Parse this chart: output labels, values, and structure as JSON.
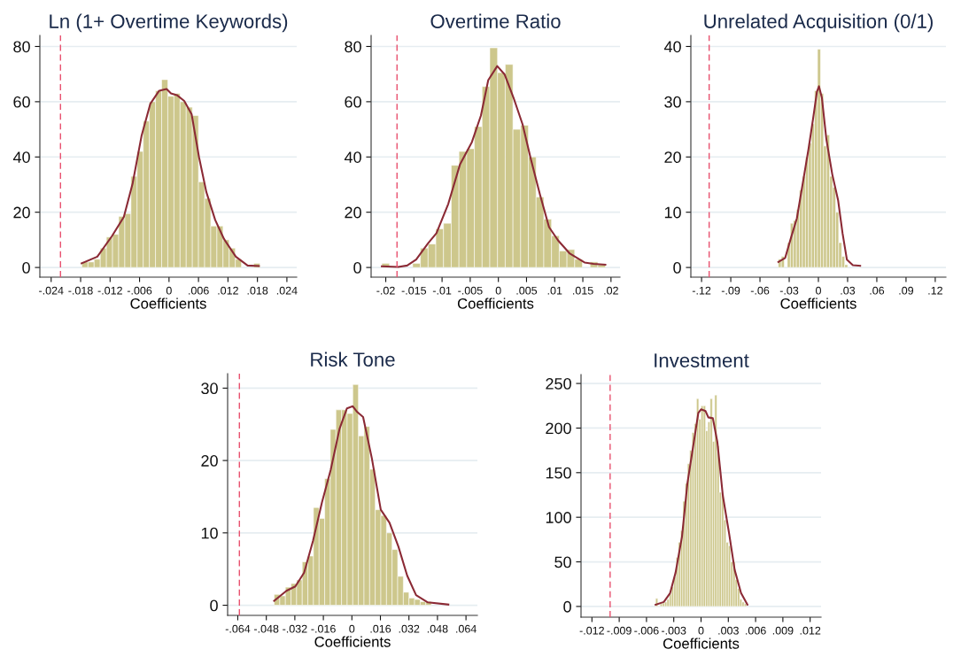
{
  "chart_data": [
    {
      "type": "histogram",
      "title": "Ln (1+ Overtime Keywords)",
      "xlabel": "Coefficients",
      "color": "#cdc78c",
      "grid": "y",
      "bins": [
        -0.01775,
        -0.0165,
        -0.01525,
        -0.014,
        -0.01275,
        -0.0115,
        -0.01025,
        -0.009,
        -0.00775,
        -0.0065,
        -0.00525,
        -0.004,
        -0.00275,
        -0.0015,
        -0.00025,
        0.001,
        0.00225,
        0.0035,
        0.00475,
        0.006,
        0.00725,
        0.0085,
        0.00975,
        0.011,
        0.01225,
        0.0135,
        0.01475,
        0.016,
        0.01725,
        0.0185
      ],
      "values": [
        2,
        2,
        3,
        7,
        11,
        12,
        18.5,
        19.5,
        33,
        42,
        53,
        60,
        64,
        68,
        62,
        63,
        60,
        58,
        55,
        31,
        25,
        15,
        15,
        10,
        7,
        3,
        0,
        0,
        1.5
      ],
      "series": [
        {
          "type": "line",
          "color": "#8b2a35",
          "x": [
            -0.0178,
            -0.0146,
            -0.0116,
            -0.0092,
            -0.0074,
            -0.0056,
            -0.0038,
            -0.002,
            -0.0005,
            0.0004,
            0.0016,
            0.0031,
            0.0046,
            0.0061,
            0.0076,
            0.0094,
            0.0112,
            0.0136,
            0.016,
            0.0183
          ],
          "values": [
            1.5,
            3.9,
            11.4,
            18.3,
            30.5,
            47.6,
            59.3,
            64,
            64.6,
            63,
            62.4,
            60.3,
            55.5,
            40,
            27.3,
            17.2,
            10.3,
            3.9,
            0.7,
            0.5
          ]
        }
      ],
      "ref_lines": [
        {
          "axis": "x",
          "value": -0.0221,
          "color": "#e8506e",
          "line_style": "dashed"
        }
      ],
      "xlim": [
        -0.0263,
        0.026
      ],
      "ylim": [
        -3.5,
        84
      ],
      "xticks": [
        {
          "value": -0.024,
          "label": "-.024"
        },
        {
          "value": -0.018,
          "label": "-.018"
        },
        {
          "value": -0.012,
          "label": "-.012"
        },
        {
          "value": -0.006,
          "label": "-.006"
        },
        0,
        {
          "value": 0.006,
          "label": ".006"
        },
        {
          "value": 0.012,
          "label": ".012"
        },
        {
          "value": 0.018,
          "label": ".018"
        },
        {
          "value": 0.024,
          "label": ".024"
        }
      ],
      "yticks": [
        0,
        20,
        40,
        60,
        80
      ]
    },
    {
      "type": "histogram",
      "title": "Overtime Ratio",
      "xlabel": "Coefficients",
      "color": "#cdc78c",
      "grid": "y",
      "bins": [
        -0.0207,
        -0.01933,
        -0.01796,
        -0.01659,
        -0.01522,
        -0.01385,
        -0.01248,
        -0.01111,
        -0.00974,
        -0.00837,
        -0.007,
        -0.00563,
        -0.00426,
        -0.00289,
        -0.00152,
        -0.00015,
        0.00122,
        0.00259,
        0.00396,
        0.00533,
        0.0067,
        0.00807,
        0.00944,
        0.01081,
        0.01218,
        0.01355,
        0.01492,
        0.01629,
        0.01766,
        0.01903
      ],
      "values": [
        1.5,
        0,
        0,
        0,
        1.5,
        7,
        8.5,
        14,
        16,
        37,
        42,
        43,
        51,
        65.5,
        79.5,
        70.5,
        73.5,
        50,
        51.5,
        40,
        25.5,
        17.5,
        11.5,
        6,
        6.5,
        3,
        0,
        2,
        1
      ],
      "series": [
        {
          "type": "line",
          "color": "#8b2a35",
          "x": [
            -0.0207,
            -0.0178,
            -0.0162,
            -0.0146,
            -0.0125,
            -0.011,
            -0.0089,
            -0.0068,
            -0.0047,
            -0.0031,
            -0.0018,
            -0.0002,
            0.0011,
            0.0027,
            0.0043,
            0.0058,
            0.0074,
            0.009,
            0.0106,
            0.0127,
            0.0153,
            0.0169,
            0.019
          ],
          "values": [
            0.4,
            0.2,
            0.7,
            2.9,
            8.7,
            12.4,
            23,
            37.4,
            45.4,
            55,
            67.8,
            72.9,
            69.9,
            61.4,
            51.8,
            39,
            26.3,
            14.6,
            9.8,
            5,
            1.8,
            1.3,
            1
          ]
        }
      ],
      "ref_lines": [
        {
          "axis": "x",
          "value": -0.018,
          "color": "#e8506e",
          "line_style": "dashed"
        }
      ],
      "xlim": [
        -0.0226,
        0.0216
      ],
      "ylim": [
        -3.5,
        84
      ],
      "xticks": [
        {
          "value": -0.02,
          "label": "-.02"
        },
        {
          "value": -0.015,
          "label": "-.015"
        },
        {
          "value": -0.01,
          "label": "-.01"
        },
        {
          "value": -0.005,
          "label": "-.005"
        },
        0,
        {
          "value": 0.005,
          "label": ".005"
        },
        {
          "value": 0.01,
          "label": ".01"
        },
        {
          "value": 0.015,
          "label": ".015"
        },
        {
          "value": 0.02,
          "label": ".02"
        }
      ],
      "yticks": [
        0,
        20,
        40,
        60,
        80
      ]
    },
    {
      "type": "histogram",
      "title": "Unrelated Acquisition (0/1)",
      "xlabel": "Coefficients",
      "color": "#cdc78c",
      "grid": "y",
      "bins": [
        -0.0412,
        -0.0381,
        -0.035,
        -0.0319,
        -0.0288,
        -0.0257,
        -0.0226,
        -0.0195,
        -0.0164,
        -0.0133,
        -0.0102,
        -0.0071,
        -0.004,
        -0.0009,
        0.0022,
        0.0053,
        0.0084,
        0.0115,
        0.0146,
        0.0177,
        0.0208,
        0.0239,
        0.027,
        0.0301
      ],
      "values": [
        1.5,
        2,
        0,
        4.5,
        8,
        8.5,
        10.5,
        14,
        16.5,
        20,
        22.5,
        26,
        32,
        39.5,
        31.5,
        22,
        24,
        16.5,
        14.5,
        10,
        4.5,
        2,
        0.5
      ],
      "series": [
        {
          "type": "line",
          "color": "#8b2a35",
          "x": [
            -0.0411,
            -0.0342,
            -0.0281,
            -0.0221,
            -0.016,
            -0.01,
            -0.0054,
            -0.0015,
            0.0006,
            0.0036,
            0.0082,
            0.0142,
            0.0203,
            0.0248,
            0.0293,
            0.0354,
            0.0429
          ],
          "values": [
            1,
            1.7,
            5.4,
            8.9,
            15.3,
            21.6,
            27,
            31.8,
            32.8,
            30.7,
            23.2,
            16.9,
            12.1,
            6.2,
            1.4,
            0.4,
            0.3
          ]
        }
      ],
      "ref_lines": [
        {
          "axis": "x",
          "value": -0.1122,
          "color": "#e8506e",
          "line_style": "dashed"
        }
      ],
      "xlim": [
        -0.131,
        0.131
      ],
      "ylim": [
        -1.75,
        42
      ],
      "xticks": [
        {
          "value": -0.12,
          "label": "-.12"
        },
        {
          "value": -0.09,
          "label": "-.09"
        },
        {
          "value": -0.06,
          "label": "-.06"
        },
        {
          "value": -0.03,
          "label": "-.03"
        },
        0,
        {
          "value": 0.03,
          "label": ".03"
        },
        {
          "value": 0.06,
          "label": ".06"
        },
        {
          "value": 0.09,
          "label": ".09"
        },
        {
          "value": 0.12,
          "label": ".12"
        }
      ],
      "yticks": [
        0,
        10,
        20,
        30,
        40
      ]
    },
    {
      "type": "histogram",
      "title": "Risk Tone",
      "xlabel": "Coefficients",
      "color": "#cdc78c",
      "grid": "y",
      "bins": [
        -0.0436,
        -0.04045,
        -0.0373,
        -0.03415,
        -0.031,
        -0.02785,
        -0.0247,
        -0.02155,
        -0.0184,
        -0.01525,
        -0.0121,
        -0.00895,
        -0.0058,
        -0.00265,
        0.0005,
        0.00365,
        0.0068,
        0.00995,
        0.0131,
        0.01625,
        0.0194,
        0.02255,
        0.0257,
        0.02885,
        0.032,
        0.03515,
        0.0383,
        0.04145,
        0.0446
      ],
      "values": [
        1.5,
        1.3,
        2.5,
        3,
        3.5,
        6,
        6.8,
        13.5,
        12,
        17.5,
        24.3,
        27,
        27,
        26.5,
        30.5,
        23.4,
        24.7,
        18.8,
        13.2,
        12.4,
        10,
        7.7,
        4,
        1.8,
        1,
        0.8,
        0.5,
        0.5
      ],
      "series": [
        {
          "type": "line",
          "color": "#8b2a35",
          "x": [
            -0.0436,
            -0.0367,
            -0.0317,
            -0.0268,
            -0.0218,
            -0.0168,
            -0.0119,
            -0.0069,
            -0.0028,
            0.0005,
            0.003,
            0.0063,
            0.0112,
            0.0162,
            0.0211,
            0.0261,
            0.031,
            0.036,
            0.0426,
            0.0541
          ],
          "values": [
            0.6,
            2,
            2.6,
            4.5,
            8.9,
            14.2,
            18.7,
            24.4,
            27.2,
            27.5,
            26.7,
            26,
            20.3,
            13.2,
            11.4,
            8.1,
            4.1,
            1.4,
            0.4,
            0.1
          ]
        }
      ],
      "ref_lines": [
        {
          "axis": "x",
          "value": -0.0631,
          "color": "#e8506e",
          "line_style": "dashed"
        }
      ],
      "xlim": [
        -0.0697,
        0.0704
      ],
      "ylim": [
        -1.4,
        32
      ],
      "xticks": [
        {
          "value": -0.064,
          "label": "-.064"
        },
        {
          "value": -0.048,
          "label": "-.048"
        },
        {
          "value": -0.032,
          "label": "-.032"
        },
        {
          "value": -0.016,
          "label": "-.016"
        },
        0,
        {
          "value": 0.016,
          "label": ".016"
        },
        {
          "value": 0.032,
          "label": ".032"
        },
        {
          "value": 0.048,
          "label": ".048"
        },
        {
          "value": 0.064,
          "label": ".064"
        }
      ],
      "yticks": [
        0,
        10,
        20,
        30
      ]
    },
    {
      "type": "histogram",
      "title": "Investment",
      "xlabel": "Coefficients",
      "color": "#cdc78c",
      "grid": "y",
      "bins": [
        -0.005,
        -0.00475,
        -0.0045,
        -0.00425,
        -0.004,
        -0.00375,
        -0.0035,
        -0.00325,
        -0.003,
        -0.00275,
        -0.0025,
        -0.00225,
        -0.002,
        -0.00175,
        -0.0015,
        -0.00125,
        -0.001,
        -0.00075,
        -0.0005,
        -0.00025,
        0,
        0.00025,
        0.0005,
        0.00075,
        0.001,
        0.00125,
        0.0015,
        0.00175,
        0.002,
        0.00225,
        0.0025,
        0.00275,
        0.003,
        0.00325,
        0.0035,
        0.00375,
        0.004,
        0.00425,
        0.0045,
        0.00475,
        0.005
      ],
      "values": [
        9,
        0,
        3,
        4,
        5,
        8,
        14,
        22,
        33,
        55,
        72,
        85,
        118,
        138,
        160,
        175,
        195,
        205,
        233,
        210,
        225,
        225,
        197,
        207,
        233,
        185,
        237,
        180,
        128,
        125,
        97,
        72,
        68,
        50,
        50,
        30,
        20,
        8,
        5,
        3
      ],
      "series": [
        {
          "type": "line",
          "color": "#8b2a35",
          "x": [
            -0.005,
            -0.0041,
            -0.0034,
            -0.0028,
            -0.0021,
            -0.0015,
            -0.0008,
            -0.0003,
            0,
            0.0005,
            0.0008,
            0.0013,
            0.0018,
            0.0024,
            0.0031,
            0.0037,
            0.0044,
            0.0051
          ],
          "values": [
            2,
            5,
            15,
            38,
            78,
            138,
            184,
            217,
            221,
            219,
            212,
            211,
            184,
            124,
            81,
            41,
            15,
            2
          ]
        }
      ],
      "ref_lines": [
        {
          "axis": "x",
          "value": -0.01,
          "color": "#e8506e",
          "line_style": "dashed"
        }
      ],
      "xlim": [
        -0.0132,
        0.0132
      ],
      "ylim": [
        -12,
        260
      ],
      "xticks": [
        {
          "value": -0.012,
          "label": "-.012"
        },
        {
          "value": -0.009,
          "label": "-.009"
        },
        {
          "value": -0.006,
          "label": "-.006"
        },
        {
          "value": -0.003,
          "label": "-.003"
        },
        0,
        {
          "value": 0.003,
          "label": ".003"
        },
        {
          "value": 0.006,
          "label": ".006"
        },
        {
          "value": 0.009,
          "label": ".009"
        },
        {
          "value": 0.012,
          "label": ".012"
        }
      ],
      "yticks": [
        0,
        50,
        100,
        150,
        200,
        250
      ]
    }
  ]
}
